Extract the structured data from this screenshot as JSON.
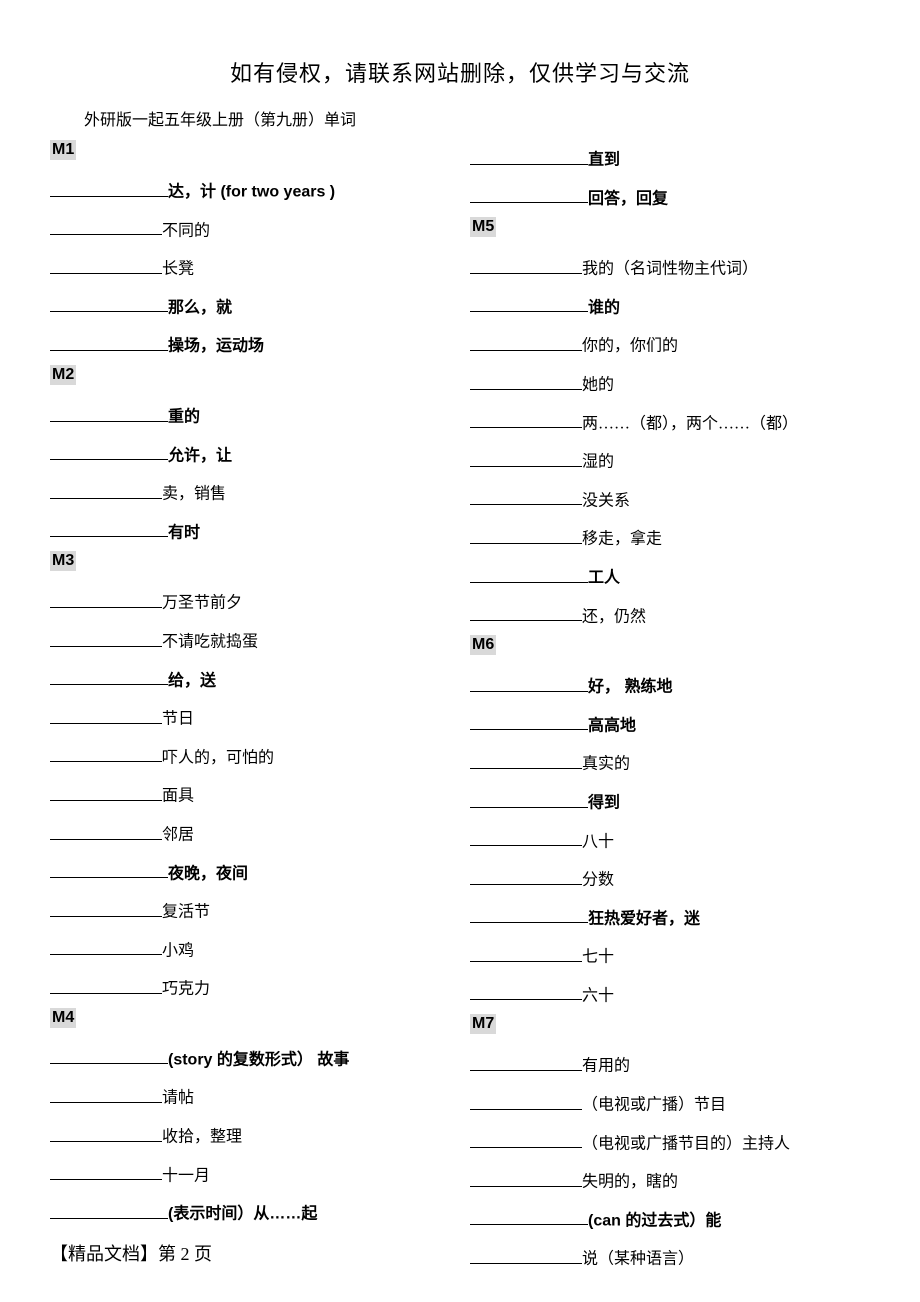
{
  "header": "如有侵权，请联系网站删除，仅供学习与交流",
  "subtitle": "外研版一起五年级上册（第九册）单词",
  "footer": "【精品文档】第 2 页",
  "blank_width_normal": 112,
  "blank_width_bold": 118,
  "left": [
    {
      "type": "module",
      "label": "M1"
    },
    {
      "type": "item",
      "bold": true,
      "def": "达，计 (for two years )"
    },
    {
      "type": "item",
      "bold": false,
      "def": "不同的"
    },
    {
      "type": "item",
      "bold": false,
      "def": "长凳"
    },
    {
      "type": "item",
      "bold": true,
      "def": "那么，就"
    },
    {
      "type": "item",
      "bold": true,
      "def": "操场，运动场"
    },
    {
      "type": "module",
      "label": "M2"
    },
    {
      "type": "item",
      "bold": true,
      "def": "重的"
    },
    {
      "type": "item",
      "bold": true,
      "def": "允许，让"
    },
    {
      "type": "item",
      "bold": false,
      "def": "卖，销售"
    },
    {
      "type": "item",
      "bold": true,
      "def": "有时"
    },
    {
      "type": "module",
      "label": "M3"
    },
    {
      "type": "item",
      "bold": false,
      "def": "万圣节前夕"
    },
    {
      "type": "item",
      "bold": false,
      "def": "不请吃就捣蛋"
    },
    {
      "type": "item",
      "bold": true,
      "def": "给，送"
    },
    {
      "type": "item",
      "bold": false,
      "def": "节日"
    },
    {
      "type": "item",
      "bold": false,
      "def": "吓人的，可怕的"
    },
    {
      "type": "item",
      "bold": false,
      "def": "面具"
    },
    {
      "type": "item",
      "bold": false,
      "def": "邻居"
    },
    {
      "type": "item",
      "bold": true,
      "def": "夜晚，夜间"
    },
    {
      "type": "item",
      "bold": false,
      "def": "复活节"
    },
    {
      "type": "item",
      "bold": false,
      "def": "小鸡"
    },
    {
      "type": "item",
      "bold": false,
      "def": "巧克力"
    },
    {
      "type": "module",
      "label": "M4"
    },
    {
      "type": "item",
      "bold": true,
      "def": "(story 的复数形式） 故事"
    },
    {
      "type": "item",
      "bold": false,
      "def": "请帖"
    },
    {
      "type": "item",
      "bold": false,
      "def": "收拾，整理"
    },
    {
      "type": "item",
      "bold": false,
      "def": "十一月"
    },
    {
      "type": "item",
      "bold": true,
      "def": "(表示时间）从……起"
    }
  ],
  "right": [
    {
      "type": "item",
      "bold": true,
      "def": "直到"
    },
    {
      "type": "item",
      "bold": true,
      "def": "回答，回复"
    },
    {
      "type": "module",
      "label": "M5"
    },
    {
      "type": "item",
      "bold": false,
      "def": "我的（名词性物主代词）"
    },
    {
      "type": "item",
      "bold": true,
      "def": "谁的"
    },
    {
      "type": "item",
      "bold": false,
      "def": "你的，你们的"
    },
    {
      "type": "item",
      "bold": false,
      "def": "她的"
    },
    {
      "type": "item",
      "bold": false,
      "def": "两……（都），两个……（都）"
    },
    {
      "type": "item",
      "bold": false,
      "def": "湿的"
    },
    {
      "type": "item",
      "bold": false,
      "def": "没关系"
    },
    {
      "type": "item",
      "bold": false,
      "def": "移走，拿走"
    },
    {
      "type": "item",
      "bold": true,
      "def": "工人"
    },
    {
      "type": "item",
      "bold": false,
      "def": "还，仍然"
    },
    {
      "type": "module",
      "label": "M6"
    },
    {
      "type": "item",
      "bold": true,
      "def": "好， 熟练地"
    },
    {
      "type": "item",
      "bold": true,
      "def": "高高地"
    },
    {
      "type": "item",
      "bold": false,
      "def": "真实的"
    },
    {
      "type": "item",
      "bold": true,
      "def": "得到"
    },
    {
      "type": "item",
      "bold": false,
      "def": "八十"
    },
    {
      "type": "item",
      "bold": false,
      "def": "分数"
    },
    {
      "type": "item",
      "bold": true,
      "def": "狂热爱好者，迷"
    },
    {
      "type": "item",
      "bold": false,
      "def": "七十"
    },
    {
      "type": "item",
      "bold": false,
      "def": "六十"
    },
    {
      "type": "module",
      "label": "M7"
    },
    {
      "type": "item",
      "bold": false,
      "def": "有用的"
    },
    {
      "type": "item",
      "bold": false,
      "def": "（电视或广播）节目"
    },
    {
      "type": "item",
      "bold": false,
      "def": "（电视或广播节目的）主持人"
    },
    {
      "type": "item",
      "bold": false,
      "def": "失明的，瞎的"
    },
    {
      "type": "item",
      "bold": true,
      "def": "(can 的过去式）能"
    },
    {
      "type": "item",
      "bold": false,
      "def": "说（某种语言）"
    }
  ]
}
